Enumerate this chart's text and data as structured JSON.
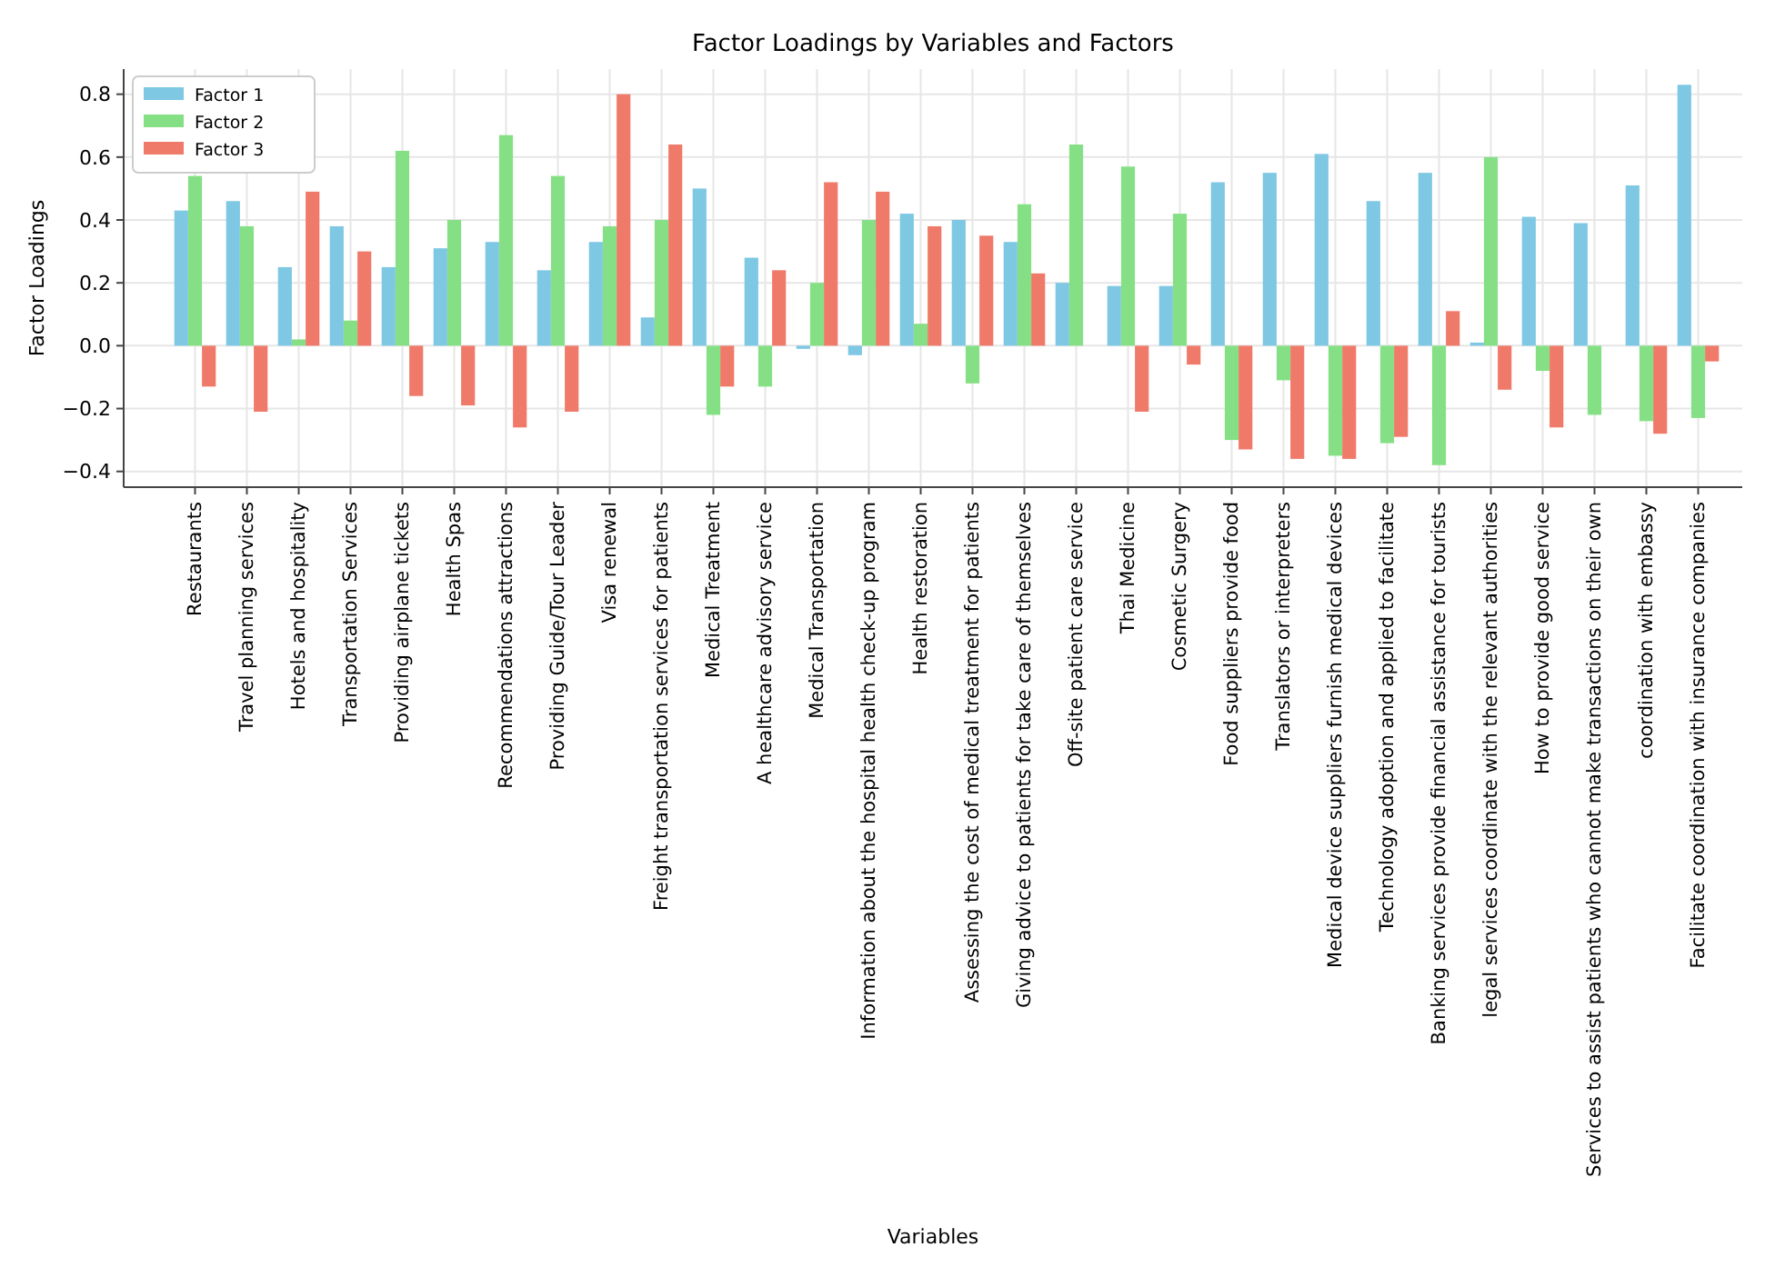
{
  "chart_data": {
    "type": "bar",
    "title": "Factor Loadings by Variables and Factors",
    "xlabel": "Variables",
    "ylabel": "Factor Loadings",
    "categories": [
      "Restaurants",
      "Travel planning services",
      "Hotels and hospitality",
      "Transportation Services",
      "Providing airplane tickets",
      "Health Spas",
      "Recommendations attractions",
      "Providing Guide/Tour Leader",
      "Visa renewal",
      "Freight transportation services for patients",
      "Medical Treatment",
      "A healthcare advisory service",
      "Medical Transportation",
      "Information about the hospital health check-up program",
      "Health restoration",
      "Assessing the cost of medical treatment for patients",
      "Giving advice to patients for take care of themselves",
      "Off-site patient care service",
      "Thai Medicine",
      "Cosmetic Surgery",
      "Food suppliers provide food",
      "Translators or interpreters",
      "Medical device suppliers furnish medical devices",
      "Technology adoption and applied to facilitate",
      "Banking services provide financial assistance for tourists",
      "legal services coordinate with the relevant authorities",
      "How to provide good service",
      "Services to assist patients who cannot make transactions on their own",
      "coordination with embassy",
      "Facilitate coordination with insurance companies"
    ],
    "series": [
      {
        "name": "Factor 1",
        "color": "#7ec8e3",
        "values": [
          0.43,
          0.46,
          0.25,
          0.38,
          0.25,
          0.31,
          0.33,
          0.24,
          0.33,
          0.09,
          0.5,
          0.28,
          -0.01,
          -0.03,
          0.42,
          0.4,
          0.33,
          0.2,
          0.19,
          0.19,
          0.52,
          0.55,
          0.61,
          0.46,
          0.55,
          0.01,
          0.41,
          0.39,
          0.51,
          0.83
        ]
      },
      {
        "name": "Factor 2",
        "color": "#85e085",
        "values": [
          0.54,
          0.38,
          0.02,
          0.08,
          0.62,
          0.4,
          0.67,
          0.54,
          0.38,
          0.4,
          -0.22,
          -0.13,
          0.2,
          0.4,
          0.07,
          -0.12,
          0.45,
          0.64,
          0.57,
          0.42,
          -0.3,
          -0.11,
          -0.35,
          -0.31,
          -0.38,
          0.6,
          -0.08,
          -0.22,
          -0.24,
          -0.23
        ]
      },
      {
        "name": "Factor 3",
        "color": "#f07a6a",
        "values": [
          -0.13,
          -0.21,
          0.49,
          0.3,
          -0.16,
          -0.19,
          -0.26,
          -0.21,
          0.8,
          0.64,
          -0.13,
          0.24,
          0.52,
          0.49,
          0.38,
          0.35,
          0.23,
          0,
          -0.21,
          -0.06,
          -0.33,
          -0.36,
          -0.36,
          -0.29,
          0.11,
          -0.14,
          -0.26,
          0,
          -0.28,
          -0.05
        ]
      }
    ],
    "ylim": [
      -0.45,
      0.88
    ],
    "yticks": [
      {
        "value": -0.4,
        "label": "−0.4"
      },
      {
        "value": -0.2,
        "label": "−0.2"
      },
      {
        "value": 0,
        "label": "0.0"
      },
      {
        "value": 0.2,
        "label": "0.2"
      },
      {
        "value": 0.4,
        "label": "0.4"
      },
      {
        "value": 0.6,
        "label": "0.6"
      },
      {
        "value": 0.8,
        "label": "0.8"
      }
    ],
    "grid": true,
    "legend": "top left"
  }
}
